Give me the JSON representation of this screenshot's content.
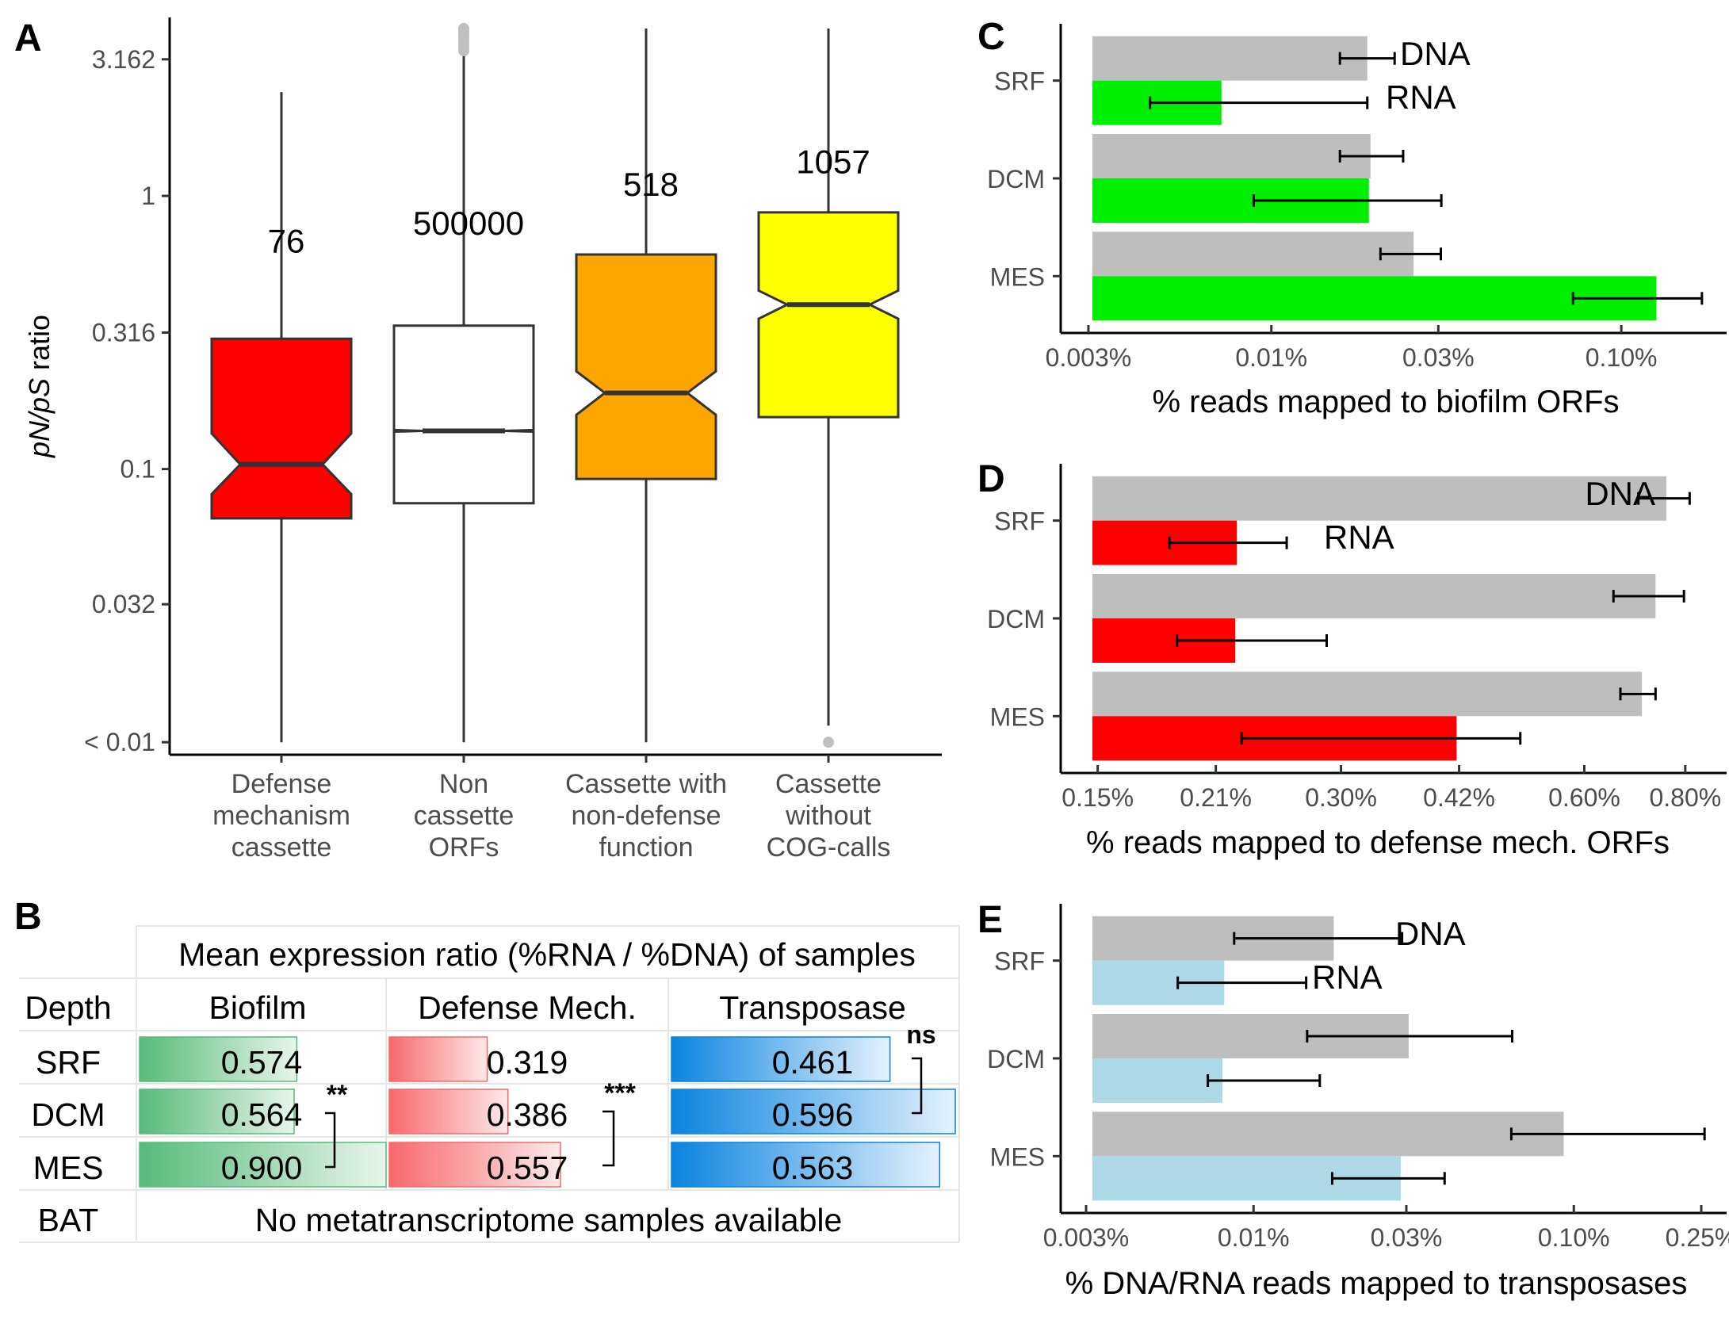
{
  "panels": {
    "A": {
      "label": "A"
    },
    "B": {
      "label": "B"
    },
    "C": {
      "label": "C"
    },
    "D": {
      "label": "D"
    },
    "E": {
      "label": "E"
    }
  },
  "colors": {
    "red": "#ff0000",
    "orange": "#ffa500",
    "yellow": "#ffff00",
    "green": "#00ee00",
    "gray": "#bebebe",
    "lightblue": "#add8e6",
    "outlier": "#c0c0c0",
    "tbl_green": "#57bb7a",
    "tbl_red": "#f8696b",
    "tbl_blue": "#0a84e0"
  },
  "chart_data": [
    {
      "panel": "A",
      "type": "boxplot",
      "ylabel_italic_1": "pN/pS",
      "ylabel_rest": " ratio",
      "yscale": "log",
      "ylim": [
        0.009,
        4.5
      ],
      "y_ticks": [
        3.162,
        1,
        0.316,
        0.1,
        0.032,
        0.01
      ],
      "y_tick_labels": [
        "3.162",
        "1",
        "0.316",
        "0.1",
        "0.032",
        "< 0.01"
      ],
      "categories": [
        [
          "Defense",
          "mechanism",
          "cassette"
        ],
        [
          "Non",
          "cassette",
          "ORFs"
        ],
        [
          "Cassette with",
          "non-defense",
          "function"
        ],
        [
          "Cassette",
          "without",
          "COG-calls"
        ]
      ],
      "boxes": [
        {
          "count_label": "76",
          "count_y": 0.62,
          "fill": "#ff0000",
          "whisker_low": 0.01,
          "q1": 0.066,
          "median": 0.104,
          "q3": 0.3,
          "whisker_high": 2.4,
          "notch_low": 0.081,
          "notch_high": 0.135,
          "outliers": []
        },
        {
          "count_label": "500000",
          "count_y": 0.72,
          "fill": "#ffffff",
          "whisker_low": 0.01,
          "q1": 0.075,
          "median": 0.138,
          "q3": 0.335,
          "whisker_high": 3.3,
          "notch_low": 0.137,
          "notch_high": 0.139,
          "outliers": [
            3.4,
            3.5,
            3.6,
            3.7,
            3.8,
            3.9,
            4.0,
            4.1
          ]
        },
        {
          "count_label": "518",
          "count_y": 1.0,
          "fill": "#ffa500",
          "whisker_low": 0.01,
          "q1": 0.092,
          "median": 0.19,
          "q3": 0.61,
          "whisker_high": 4.1,
          "notch_low": 0.158,
          "notch_high": 0.228,
          "outliers": []
        },
        {
          "count_label": "1057",
          "count_y": 1.21,
          "fill": "#ffff00",
          "whisker_low": 0.0115,
          "q1": 0.155,
          "median": 0.4,
          "q3": 0.87,
          "whisker_high": 4.1,
          "notch_low": 0.355,
          "notch_high": 0.45,
          "outliers": [
            0.01
          ]
        }
      ]
    },
    {
      "panel": "C",
      "type": "bar",
      "orientation": "horizontal",
      "xscale": "log",
      "xlim": [
        0.0025,
        0.2
      ],
      "xlabel": "% reads mapped to biofilm ORFs",
      "x_ticks": [
        0.003,
        0.01,
        0.03,
        0.1
      ],
      "x_tick_labels": [
        "0.003%",
        "0.01%",
        "0.03%",
        "0.10%"
      ],
      "categories": [
        "SRF",
        "DCM",
        "MES"
      ],
      "series": [
        {
          "name": "DNA",
          "color": "#bebebe",
          "values": [
            0.0188,
            0.0192,
            0.0255
          ],
          "err_low": [
            0.0157,
            0.0157,
            0.0205
          ],
          "err_high": [
            0.0225,
            0.0238,
            0.0305
          ]
        },
        {
          "name": "RNA",
          "color": "#00ee00",
          "values": [
            0.0072,
            0.019,
            0.126
          ],
          "err_low": [
            0.0045,
            0.0089,
            0.0728
          ],
          "err_high": [
            0.0188,
            0.0306,
            0.17
          ]
        }
      ],
      "label_DNA": "DNA",
      "label_RNA": "RNA"
    },
    {
      "panel": "D",
      "type": "bar",
      "orientation": "horizontal",
      "xscale": "log",
      "xlim": [
        0.135,
        0.9
      ],
      "xlabel": "% reads mapped to defense mech. ORFs",
      "x_ticks": [
        0.15,
        0.21,
        0.3,
        0.42,
        0.6,
        0.8
      ],
      "x_tick_labels": [
        "0.15%",
        "0.21%",
        "0.30%",
        "0.42%",
        "0.60%",
        "0.80%"
      ],
      "categories": [
        "SRF",
        "DCM",
        "MES"
      ],
      "series": [
        {
          "name": "DNA",
          "color": "#bebebe",
          "values": [
            0.758,
            0.735,
            0.707
          ],
          "err_low": [
            0.7,
            0.652,
            0.665
          ],
          "err_high": [
            0.81,
            0.797,
            0.735
          ]
        },
        {
          "name": "RNA",
          "color": "#ff0000",
          "values": [
            0.223,
            0.222,
            0.417
          ],
          "err_low": [
            0.184,
            0.188,
            0.226
          ],
          "err_high": [
            0.257,
            0.288,
            0.5
          ]
        }
      ],
      "label_DNA": "DNA",
      "label_RNA": "RNA"
    },
    {
      "panel": "E",
      "type": "bar",
      "orientation": "horizontal",
      "xscale": "log",
      "xlim": [
        0.0025,
        0.3
      ],
      "xlabel": "% DNA/RNA reads mapped to transposases",
      "x_ticks": [
        0.003,
        0.01,
        0.03,
        0.1,
        0.25
      ],
      "x_tick_labels": [
        "0.003%",
        "0.01%",
        "0.03%",
        "0.10%",
        "0.25%"
      ],
      "categories": [
        "SRF",
        "DCM",
        "MES"
      ],
      "series": [
        {
          "name": "DNA",
          "color": "#bebebe",
          "values": [
            0.0178,
            0.0305,
            0.093
          ],
          "err_low": [
            0.0087,
            0.0147,
            0.0638
          ],
          "err_high": [
            0.0291,
            0.0642,
            0.256
          ]
        },
        {
          "name": "RNA",
          "color": "#add8e6",
          "values": [
            0.0081,
            0.008,
            0.0288
          ],
          "err_low": [
            0.0058,
            0.0072,
            0.0176
          ],
          "err_high": [
            0.0146,
            0.0161,
            0.0395
          ]
        }
      ],
      "label_DNA": "DNA",
      "label_RNA": "RNA"
    },
    {
      "panel": "B",
      "type": "table",
      "title": "Mean expression ratio (%RNA / %DNA) of samples",
      "corner_header": "Depth",
      "columns": [
        "Biofilm",
        "Defense Mech.",
        "Transposase"
      ],
      "rows": [
        {
          "depth": "SRF",
          "values": [
            "0.574",
            "0.319",
            "0.461"
          ],
          "fractions": [
            0.638,
            0.354,
            0.77
          ]
        },
        {
          "depth": "DCM",
          "values": [
            "0.564",
            "0.386",
            "0.596"
          ],
          "fractions": [
            0.627,
            0.429,
            1.0
          ]
        },
        {
          "depth": "MES",
          "values": [
            "0.900",
            "0.557",
            "0.563"
          ],
          "fractions": [
            1.0,
            0.619,
            0.945
          ]
        }
      ],
      "bat_row": {
        "depth": "BAT",
        "text": "No metatranscriptome samples available"
      },
      "significance": {
        "biofilm": "**",
        "defense": "***",
        "transposase": "ns"
      }
    }
  ]
}
